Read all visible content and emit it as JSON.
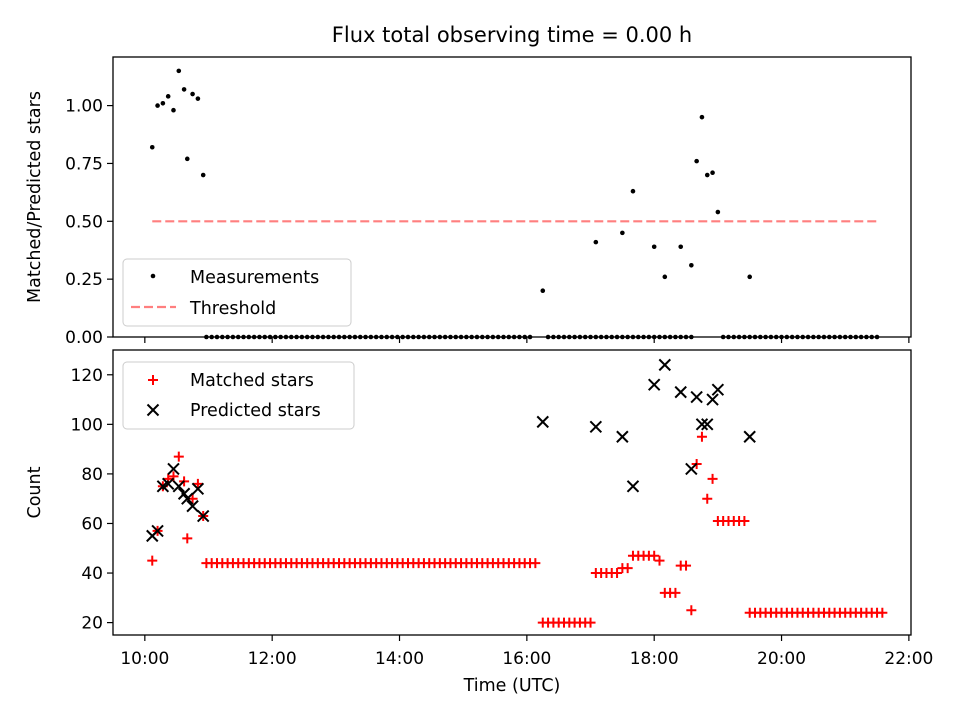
{
  "colors": {
    "measurement": "#000000",
    "threshold": "#ff7f7f",
    "matched": "#ff0000",
    "predicted": "#000000",
    "axes": "#000000"
  },
  "chart_data": [
    {
      "panel": "top",
      "type": "scatter",
      "title": "Flux total observing time = 0.00 h",
      "xlabel": "",
      "ylabel": "Matched/Predicted stars",
      "xlim": [
        "09:30",
        "22:02"
      ],
      "ylim": [
        0.0,
        1.21
      ],
      "yticks": [
        "0.00",
        "0.25",
        "0.50",
        "0.75",
        "1.00"
      ],
      "x_tick_labels_visible": false,
      "legend": {
        "position": "lower-left",
        "entries": [
          "Measurements",
          "Threshold"
        ]
      },
      "series": [
        {
          "name": "Measurements",
          "marker": "dot",
          "points": [
            [
              "10:07",
              0.82
            ],
            [
              "10:12",
              1.0
            ],
            [
              "10:17",
              1.01
            ],
            [
              "10:22",
              1.04
            ],
            [
              "10:27",
              0.98
            ],
            [
              "10:32",
              1.15
            ],
            [
              "10:37",
              1.07
            ],
            [
              "10:40",
              0.77
            ],
            [
              "10:45",
              1.05
            ],
            [
              "10:50",
              1.03
            ],
            [
              "10:55",
              0.7
            ],
            [
              "16:15",
              0.2
            ],
            [
              "17:05",
              0.41
            ],
            [
              "17:30",
              0.45
            ],
            [
              "17:40",
              0.63
            ],
            [
              "18:00",
              0.39
            ],
            [
              "18:10",
              0.26
            ],
            [
              "18:25",
              0.39
            ],
            [
              "18:35",
              0.31
            ],
            [
              "18:40",
              0.76
            ],
            [
              "18:45",
              0.95
            ],
            [
              "18:50",
              0.7
            ],
            [
              "18:55",
              0.71
            ],
            [
              "19:00",
              0.54
            ],
            [
              "19:30",
              0.26
            ]
          ],
          "zero_runs": [
            {
              "from": "10:58",
              "to": "16:05"
            },
            {
              "from": "16:20",
              "to": "17:40"
            },
            {
              "from": "17:45",
              "to": "18:35"
            },
            {
              "from": "19:05",
              "to": "21:30"
            }
          ]
        },
        {
          "name": "Threshold",
          "style": "dashed",
          "line": [
            [
              "10:07",
              0.5
            ],
            [
              "21:30",
              0.5
            ]
          ]
        }
      ]
    },
    {
      "panel": "bottom",
      "type": "scatter",
      "title": "",
      "xlabel": "Time (UTC)",
      "ylabel": "Count",
      "xlim": [
        "09:30",
        "22:02"
      ],
      "ylim": [
        15,
        130
      ],
      "yticks": [
        "20",
        "40",
        "60",
        "80",
        "100",
        "120"
      ],
      "xticks": [
        "10:00",
        "12:00",
        "14:00",
        "16:00",
        "18:00",
        "20:00",
        "22:00"
      ],
      "legend": {
        "position": "upper-left",
        "entries": [
          "Matched stars",
          "Predicted stars"
        ]
      },
      "series": [
        {
          "name": "Matched stars",
          "marker": "plus",
          "points": [
            [
              "10:07",
              45
            ],
            [
              "10:12",
              57
            ],
            [
              "10:17",
              75
            ],
            [
              "10:22",
              78
            ],
            [
              "10:27",
              79
            ],
            [
              "10:32",
              87
            ],
            [
              "10:37",
              77
            ],
            [
              "10:40",
              54
            ],
            [
              "10:45",
              70
            ],
            [
              "10:50",
              76
            ],
            [
              "10:55",
              63
            ],
            [
              "18:40",
              84
            ],
            [
              "18:45",
              95
            ],
            [
              "18:50",
              70
            ],
            [
              "18:55",
              78
            ],
            [
              "18:25",
              43
            ],
            [
              "18:30",
              43
            ],
            [
              "18:35",
              25
            ],
            [
              "17:30",
              42
            ],
            [
              "17:35",
              42
            ],
            [
              "18:05",
              45
            ]
          ],
          "runs": [
            {
              "from": "10:58",
              "to": "16:10",
              "value": 44
            },
            {
              "from": "16:15",
              "to": "17:00",
              "value": 20
            },
            {
              "from": "17:05",
              "to": "17:25",
              "value": 40
            },
            {
              "from": "17:40",
              "to": "18:00",
              "value": 47
            },
            {
              "from": "18:10",
              "to": "18:20",
              "value": 32
            },
            {
              "from": "19:00",
              "to": "19:25",
              "value": 61
            },
            {
              "from": "19:30",
              "to": "21:35",
              "value": 24
            }
          ]
        },
        {
          "name": "Predicted stars",
          "marker": "x",
          "points": [
            [
              "10:07",
              55
            ],
            [
              "10:12",
              57
            ],
            [
              "10:17",
              75
            ],
            [
              "10:22",
              76
            ],
            [
              "10:27",
              82
            ],
            [
              "10:32",
              75
            ],
            [
              "10:37",
              72
            ],
            [
              "10:40",
              70
            ],
            [
              "10:45",
              67
            ],
            [
              "10:50",
              74
            ],
            [
              "10:55",
              63
            ],
            [
              "16:15",
              101
            ],
            [
              "17:05",
              99
            ],
            [
              "17:30",
              95
            ],
            [
              "17:40",
              75
            ],
            [
              "18:00",
              116
            ],
            [
              "18:10",
              124
            ],
            [
              "18:25",
              113
            ],
            [
              "18:35",
              82
            ],
            [
              "18:40",
              111
            ],
            [
              "18:45",
              100
            ],
            [
              "18:50",
              100
            ],
            [
              "18:55",
              110
            ],
            [
              "19:00",
              114
            ],
            [
              "19:30",
              95
            ]
          ]
        }
      ]
    }
  ]
}
